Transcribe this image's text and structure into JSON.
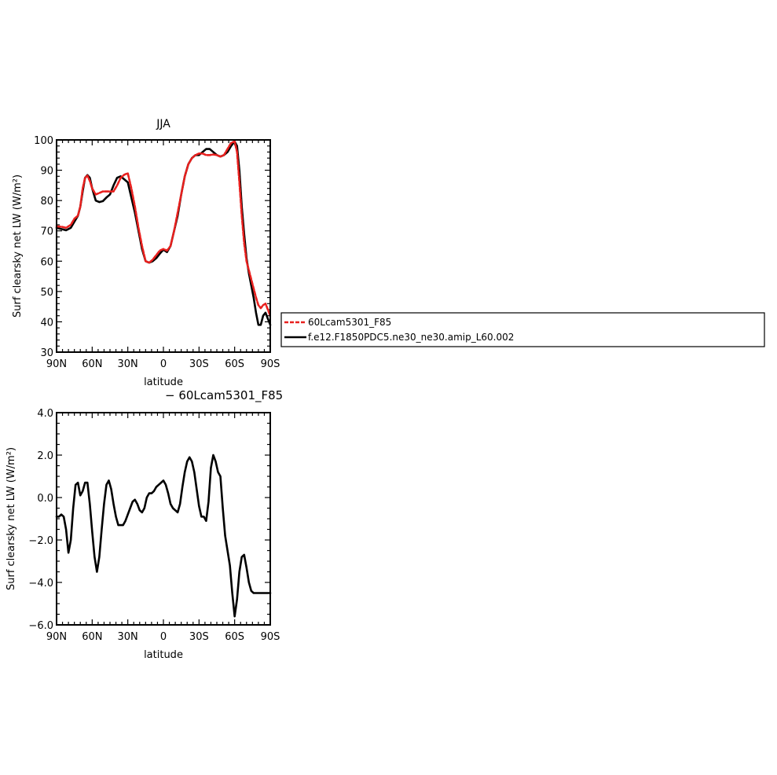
{
  "colors": {
    "model": "#e8201e",
    "control": "#000000",
    "diff": "#000000",
    "axis": "#000000"
  },
  "legend": {
    "entries": [
      "60Lcam5301_F85",
      "f.e12.F1850PDC5.ne30_ne30.amip_L60.002"
    ]
  },
  "chart_data": [
    {
      "type": "line",
      "title": "JJA",
      "xlabel": "latitude",
      "ylabel": "Surf clearsky net LW (W/m²)",
      "xlim": [
        -90,
        90
      ],
      "ylim": [
        30,
        100
      ],
      "x_ticks": [
        -90,
        -60,
        -30,
        0,
        30,
        60,
        90
      ],
      "x_tick_labels": [
        "90N",
        "60N",
        "30N",
        "0",
        "30S",
        "60S",
        "90S"
      ],
      "y_ticks": [
        30,
        40,
        50,
        60,
        70,
        80,
        90,
        100
      ],
      "y_tick_labels": [
        "30",
        "40",
        "50",
        "60",
        "70",
        "80",
        "90",
        "100"
      ],
      "series": [
        {
          "name": "60Lcam5301_F85",
          "style": "dashed",
          "x": [
            -90,
            -85,
            -82,
            -78,
            -75,
            -72,
            -70,
            -68,
            -66,
            -64,
            -62,
            -60,
            -57,
            -54,
            -51,
            -48,
            -45,
            -42,
            -39,
            -36,
            -33,
            -30,
            -27,
            -24,
            -21,
            -18,
            -15,
            -12,
            -9,
            -6,
            -3,
            0,
            3,
            6,
            9,
            12,
            15,
            18,
            21,
            24,
            27,
            30,
            33,
            36,
            39,
            42,
            45,
            48,
            51,
            54,
            57,
            60,
            62,
            64,
            66,
            68,
            70,
            72,
            74,
            76,
            78,
            80,
            82,
            84,
            86,
            88,
            90
          ],
          "y": [
            71.5,
            71.3,
            71,
            72,
            74,
            75,
            78,
            84,
            87.5,
            88.2,
            86.5,
            84,
            82,
            82.5,
            83,
            83,
            83,
            83,
            85,
            87.5,
            88.5,
            89,
            84,
            78,
            71,
            65,
            60,
            59.5,
            60.5,
            62,
            63.5,
            64,
            63.5,
            65,
            70,
            76,
            82,
            88,
            92,
            94,
            95,
            95.5,
            95.5,
            95,
            95,
            95.2,
            95,
            94.5,
            95,
            97,
            99,
            99.5,
            96,
            86,
            75,
            66,
            60,
            57,
            54,
            51,
            48,
            45.5,
            44.5,
            45.5,
            46,
            44,
            42
          ]
        },
        {
          "name": "f.e12.F1850PDC5.ne30_ne30.amip_L60.002",
          "style": "solid",
          "x": [
            -90,
            -85,
            -82,
            -78,
            -75,
            -72,
            -70,
            -68,
            -66,
            -64,
            -62,
            -60,
            -57,
            -54,
            -51,
            -48,
            -45,
            -42,
            -39,
            -36,
            -33,
            -30,
            -27,
            -24,
            -21,
            -18,
            -15,
            -12,
            -9,
            -6,
            -3,
            0,
            3,
            6,
            9,
            12,
            15,
            18,
            21,
            24,
            27,
            30,
            33,
            36,
            39,
            42,
            45,
            48,
            51,
            54,
            57,
            60,
            62,
            64,
            66,
            68,
            70,
            72,
            74,
            76,
            78,
            80,
            82,
            84,
            86,
            88,
            90
          ],
          "y": [
            71,
            70.5,
            70.2,
            71,
            73,
            75,
            78,
            83,
            87.5,
            88.4,
            87.5,
            84,
            80,
            79.5,
            79.8,
            81,
            82,
            85,
            87.5,
            88,
            87,
            86,
            81,
            76,
            70,
            64,
            60,
            59.5,
            60,
            61,
            62.5,
            63.8,
            63,
            65,
            70,
            75,
            82,
            88,
            92,
            94,
            95,
            95,
            96,
            97,
            97,
            96,
            95,
            94.5,
            95,
            96,
            98,
            99.5,
            98,
            90,
            78,
            69,
            61,
            56,
            52,
            48,
            43,
            39,
            39,
            42,
            43,
            41,
            39
          ]
        }
      ]
    },
    {
      "type": "line",
      "title": "− 60Lcam5301_F85",
      "xlabel": "latitude",
      "ylabel": "Surf clearsky net LW (W/m²)",
      "xlim": [
        -90,
        90
      ],
      "ylim": [
        -6,
        4
      ],
      "x_ticks": [
        -90,
        -60,
        -30,
        0,
        30,
        60,
        90
      ],
      "x_tick_labels": [
        "90N",
        "60N",
        "30N",
        "0",
        "30S",
        "60S",
        "90S"
      ],
      "y_ticks": [
        -6,
        -4,
        -2,
        0,
        2,
        4
      ],
      "y_tick_labels": [
        "−6.0",
        "−4.0",
        "−2.0",
        "0.0",
        "2.0",
        "4.0"
      ],
      "series": [
        {
          "name": "",
          "style": "solid",
          "x": [
            -90,
            -88,
            -86,
            -84,
            -82,
            -80,
            -78,
            -76,
            -74,
            -72,
            -70,
            -68,
            -66,
            -64,
            -62,
            -60,
            -58,
            -56,
            -54,
            -52,
            -50,
            -48,
            -46,
            -44,
            -42,
            -40,
            -38,
            -36,
            -34,
            -32,
            -30,
            -28,
            -26,
            -24,
            -22,
            -20,
            -18,
            -16,
            -14,
            -12,
            -10,
            -8,
            -6,
            -4,
            -2,
            0,
            2,
            4,
            6,
            8,
            10,
            12,
            14,
            16,
            18,
            20,
            22,
            24,
            26,
            28,
            30,
            32,
            34,
            36,
            38,
            40,
            42,
            44,
            46,
            48,
            50,
            52,
            54,
            56,
            58,
            60,
            62,
            64,
            66,
            68,
            70,
            72,
            74,
            76,
            78,
            80,
            82,
            84,
            86,
            88,
            90
          ],
          "y": [
            -0.9,
            -0.9,
            -0.8,
            -0.9,
            -1.5,
            -2.6,
            -2.0,
            -0.5,
            0.6,
            0.7,
            0.1,
            0.3,
            0.7,
            0.7,
            -0.3,
            -1.6,
            -2.8,
            -3.5,
            -2.8,
            -1.5,
            -0.3,
            0.6,
            0.8,
            0.4,
            -0.3,
            -0.9,
            -1.3,
            -1.3,
            -1.3,
            -1.1,
            -0.8,
            -0.5,
            -0.2,
            -0.1,
            -0.3,
            -0.6,
            -0.7,
            -0.5,
            0.0,
            0.2,
            0.2,
            0.3,
            0.5,
            0.6,
            0.7,
            0.8,
            0.6,
            0.2,
            -0.3,
            -0.5,
            -0.6,
            -0.7,
            -0.3,
            0.5,
            1.2,
            1.7,
            1.9,
            1.7,
            1.2,
            0.4,
            -0.4,
            -0.9,
            -0.9,
            -1.1,
            -0.2,
            1.4,
            2.0,
            1.7,
            1.2,
            1.0,
            -0.5,
            -1.8,
            -2.5,
            -3.2,
            -4.5,
            -5.6,
            -4.8,
            -3.5,
            -2.8,
            -2.7,
            -3.3,
            -4.0,
            -4.4,
            -4.5,
            -4.5,
            -4.5,
            -4.5,
            -4.5,
            -4.5,
            -4.5,
            -4.5
          ]
        }
      ]
    }
  ]
}
